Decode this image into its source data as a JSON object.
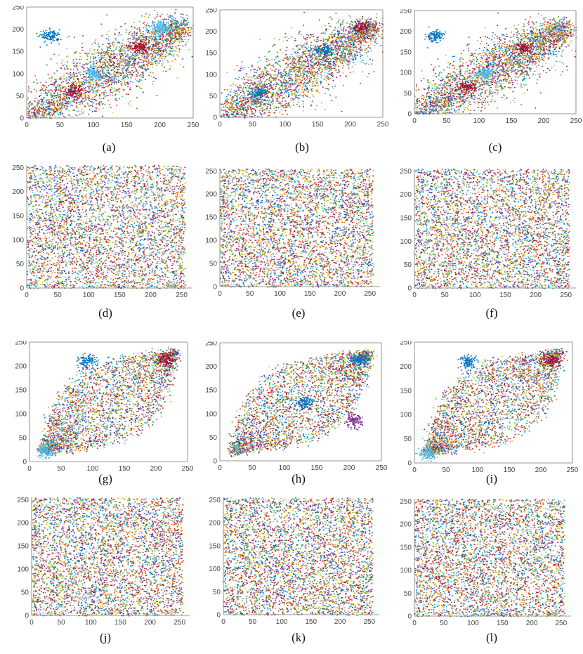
{
  "palette": [
    "#0072BD",
    "#D95319",
    "#EDB120",
    "#7E2F8E",
    "#77AC30",
    "#4DBEEE",
    "#A2142F"
  ],
  "chart_data": [
    {
      "id": "a",
      "caption": "(a)",
      "type": "scatter",
      "pattern": "correlated-band",
      "xlim": [
        0,
        250
      ],
      "ylim": [
        0,
        250
      ],
      "xticks": [
        "0",
        "50",
        "100",
        "150",
        "200",
        "250"
      ],
      "yticks": [
        "0",
        "50",
        "100",
        "150",
        "200",
        "250"
      ],
      "clusters": [
        {
          "color": "#0072BD",
          "x": 35,
          "y": 185
        },
        {
          "color": "#A2142F",
          "x": 70,
          "y": 60
        },
        {
          "color": "#A2142F",
          "x": 170,
          "y": 160
        },
        {
          "color": "#4DBEEE",
          "x": 100,
          "y": 100
        },
        {
          "color": "#4DBEEE",
          "x": 200,
          "y": 205
        }
      ]
    },
    {
      "id": "b",
      "caption": "(b)",
      "type": "scatter",
      "pattern": "correlated-band",
      "xlim": [
        0,
        250
      ],
      "ylim": [
        0,
        250
      ],
      "xticks": [
        "0",
        "50",
        "100",
        "150",
        "200",
        "250"
      ],
      "yticks": [
        "0",
        "50",
        "100",
        "150",
        "200",
        "250"
      ],
      "clusters": [
        {
          "color": "#0072BD",
          "x": 60,
          "y": 60
        },
        {
          "color": "#0072BD",
          "x": 160,
          "y": 155
        },
        {
          "color": "#A2142F",
          "x": 215,
          "y": 210
        }
      ]
    },
    {
      "id": "c",
      "caption": "(c)",
      "type": "scatter",
      "pattern": "correlated-band",
      "xlim": [
        0,
        250
      ],
      "ylim": [
        0,
        250
      ],
      "xticks": [
        "0",
        "50",
        "100",
        "150",
        "200",
        "250"
      ],
      "yticks": [
        "0",
        "50",
        "100",
        "150",
        "200",
        "250"
      ],
      "clusters": [
        {
          "color": "#0072BD",
          "x": 30,
          "y": 190
        },
        {
          "color": "#A2142F",
          "x": 80,
          "y": 65
        },
        {
          "color": "#A2142F",
          "x": 170,
          "y": 160
        },
        {
          "color": "#4DBEEE",
          "x": 110,
          "y": 100
        }
      ]
    },
    {
      "id": "d",
      "caption": "(d)",
      "type": "scatter",
      "pattern": "uniform",
      "xlim": [
        0,
        255
      ],
      "ylim": [
        0,
        255
      ],
      "xticks": [
        "0",
        "50",
        "100",
        "150",
        "200",
        "250"
      ],
      "yticks": [
        "0",
        "50",
        "100",
        "150",
        "200",
        "250"
      ],
      "clusters": []
    },
    {
      "id": "e",
      "caption": "(e)",
      "type": "scatter",
      "pattern": "uniform",
      "xlim": [
        0,
        255
      ],
      "ylim": [
        0,
        255
      ],
      "xticks": [
        "0",
        "50",
        "100",
        "150",
        "200",
        "250"
      ],
      "yticks": [
        "0",
        "50",
        "100",
        "150",
        "200",
        "250"
      ],
      "clusters": []
    },
    {
      "id": "f",
      "caption": "(f)",
      "type": "scatter",
      "pattern": "uniform",
      "xlim": [
        0,
        255
      ],
      "ylim": [
        0,
        255
      ],
      "xticks": [
        "0",
        "50",
        "100",
        "150",
        "200",
        "250"
      ],
      "yticks": [
        "0",
        "50",
        "100",
        "150",
        "200",
        "250"
      ],
      "clusters": []
    },
    {
      "id": "g",
      "caption": "(g)",
      "type": "scatter",
      "pattern": "parallelogram",
      "xlim": [
        0,
        250
      ],
      "ylim": [
        0,
        250
      ],
      "xticks": [
        "0",
        "50",
        "100",
        "150",
        "200",
        "250"
      ],
      "yticks": [
        "0",
        "50",
        "100",
        "150",
        "200",
        "250"
      ],
      "clusters": [
        {
          "color": "#0072BD",
          "x": 90,
          "y": 210
        },
        {
          "color": "#A2142F",
          "x": 215,
          "y": 215
        },
        {
          "color": "#4DBEEE",
          "x": 25,
          "y": 25
        }
      ]
    },
    {
      "id": "h",
      "caption": "(h)",
      "type": "scatter",
      "pattern": "parallelogram",
      "xlim": [
        0,
        250
      ],
      "ylim": [
        0,
        250
      ],
      "xticks": [
        "0",
        "50",
        "100",
        "150",
        "200",
        "250"
      ],
      "yticks": [
        "0",
        "50",
        "100",
        "150",
        "200",
        "250"
      ],
      "clusters": [
        {
          "color": "#0072BD",
          "x": 215,
          "y": 215
        },
        {
          "color": "#0072BD",
          "x": 130,
          "y": 125
        },
        {
          "color": "#7E2F8E",
          "x": 205,
          "y": 85
        }
      ]
    },
    {
      "id": "i",
      "caption": "(i)",
      "type": "scatter",
      "pattern": "parallelogram",
      "xlim": [
        0,
        250
      ],
      "ylim": [
        0,
        250
      ],
      "xticks": [
        "0",
        "50",
        "100",
        "150",
        "200",
        "250"
      ],
      "yticks": [
        "0",
        "50",
        "100",
        "150",
        "200",
        "250"
      ],
      "clusters": [
        {
          "color": "#0072BD",
          "x": 85,
          "y": 210
        },
        {
          "color": "#A2142F",
          "x": 215,
          "y": 215
        },
        {
          "color": "#4DBEEE",
          "x": 20,
          "y": 20
        }
      ]
    },
    {
      "id": "j",
      "caption": "(j)",
      "type": "scatter",
      "pattern": "uniform",
      "xlim": [
        0,
        255
      ],
      "ylim": [
        0,
        255
      ],
      "xticks": [
        "0",
        "50",
        "100",
        "150",
        "200",
        "250"
      ],
      "yticks": [
        "0",
        "50",
        "100",
        "150",
        "200",
        "250"
      ],
      "clusters": []
    },
    {
      "id": "k",
      "caption": "(k)",
      "type": "scatter",
      "pattern": "uniform",
      "xlim": [
        0,
        255
      ],
      "ylim": [
        0,
        255
      ],
      "xticks": [
        "0",
        "50",
        "100",
        "150",
        "200",
        "250"
      ],
      "yticks": [
        "0",
        "50",
        "100",
        "150",
        "200",
        "250"
      ],
      "clusters": []
    },
    {
      "id": "l",
      "caption": "(l)",
      "type": "scatter",
      "pattern": "uniform",
      "xlim": [
        0,
        255
      ],
      "ylim": [
        0,
        255
      ],
      "xticks": [
        "0",
        "50",
        "100",
        "150",
        "200",
        "250"
      ],
      "yticks": [
        "0",
        "50",
        "100",
        "150",
        "200",
        "250"
      ],
      "clusters": []
    }
  ]
}
